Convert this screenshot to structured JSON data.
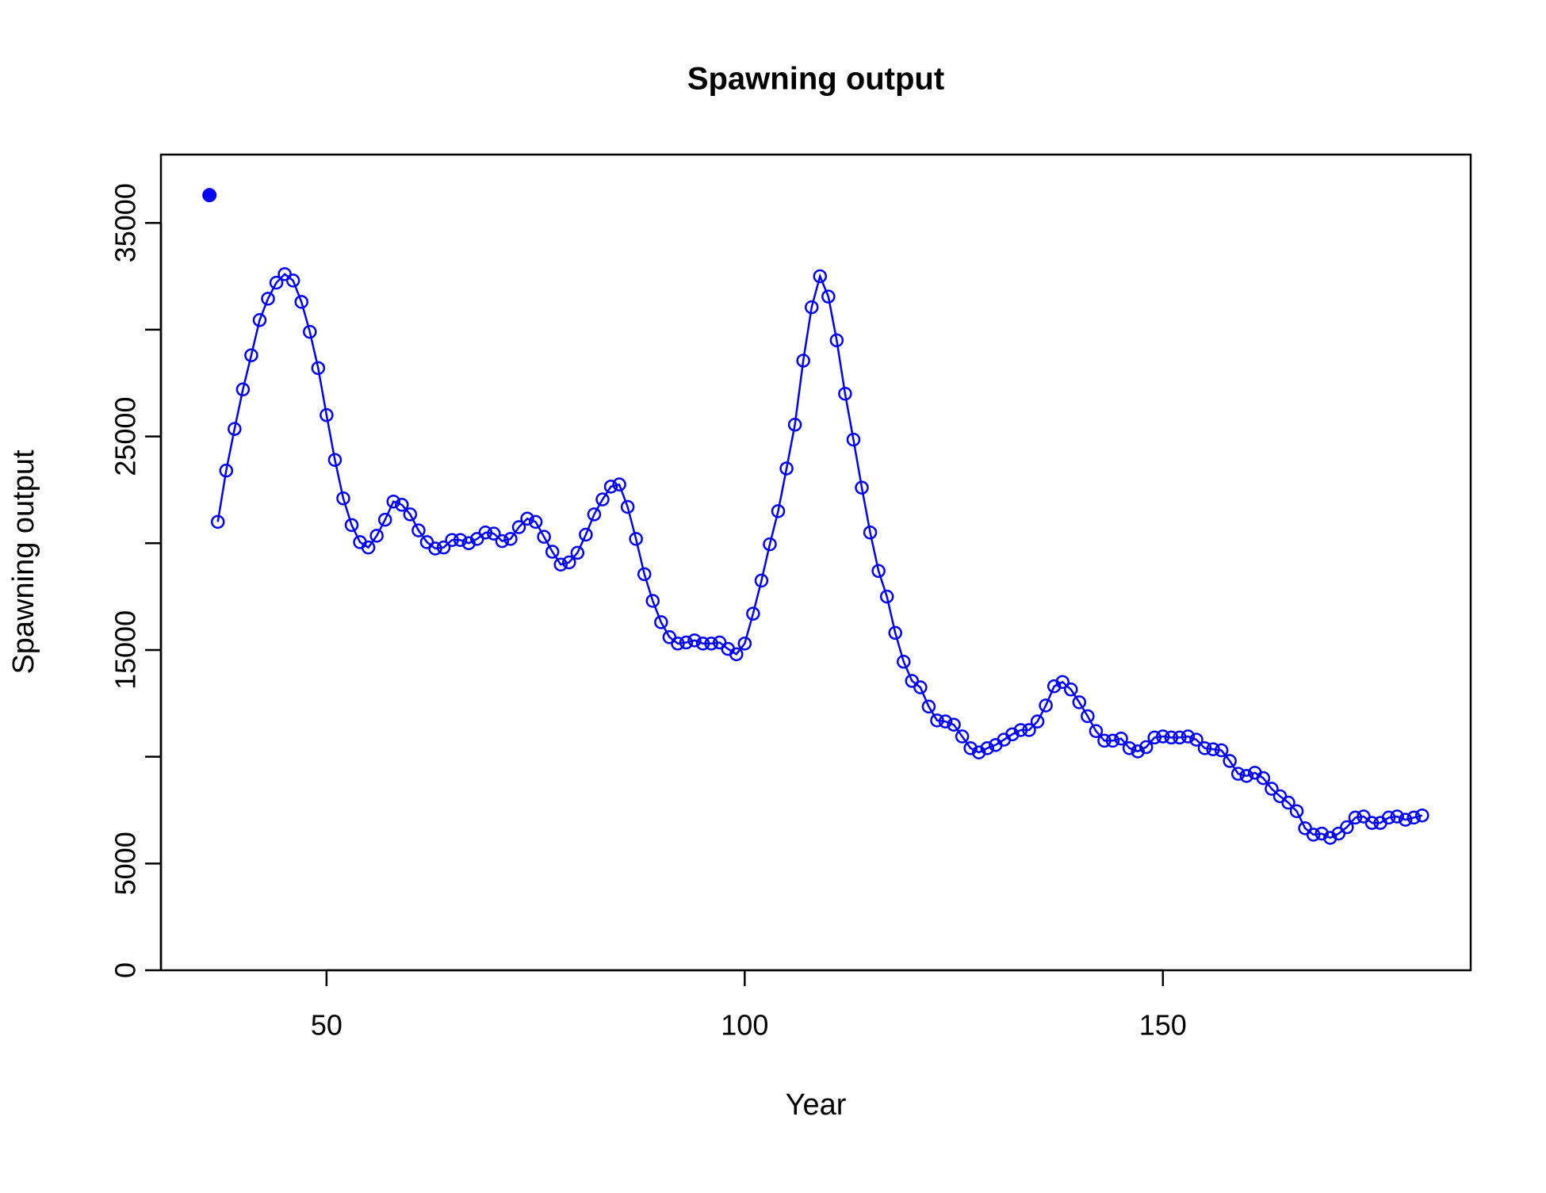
{
  "chart_data": {
    "type": "line",
    "title": "Spawning output",
    "x_label": "Year",
    "y_label": "Spawning output",
    "xlim": [
      30.2,
      186.8
    ],
    "ylim": [
      0,
      38200
    ],
    "xticks": [
      50,
      100,
      150
    ],
    "yticks": [
      0,
      5000,
      {
        "value": 10000,
        "label": null
      },
      15000,
      {
        "value": 20000,
        "label": null
      },
      25000,
      {
        "value": 30000,
        "label": null
      },
      35000
    ],
    "series": [
      {
        "color": "#0000ff",
        "style": "line-circles",
        "x": [
          37,
          38,
          39,
          40,
          41,
          42,
          43,
          44,
          45,
          46,
          47,
          48,
          49,
          50,
          51,
          52,
          53,
          54,
          55,
          56,
          57,
          58,
          59,
          60,
          61,
          62,
          63,
          64,
          65,
          66,
          67,
          68,
          69,
          70,
          71,
          72,
          73,
          74,
          75,
          76,
          77,
          78,
          79,
          80,
          81,
          82,
          83,
          84,
          85,
          86,
          87,
          88,
          89,
          90,
          91,
          92,
          93,
          94,
          95,
          96,
          97,
          98,
          99,
          100,
          101,
          102,
          103,
          104,
          105,
          106,
          107,
          108,
          109,
          110,
          111,
          112,
          113,
          114,
          115,
          116,
          117,
          118,
          119,
          120,
          121,
          122,
          123,
          124,
          125,
          126,
          127,
          128,
          129,
          130,
          131,
          132,
          133,
          134,
          135,
          136,
          137,
          138,
          139,
          140,
          141,
          142,
          143,
          144,
          145,
          146,
          147,
          148,
          149,
          150,
          151,
          152,
          153,
          154,
          155,
          156,
          157,
          158,
          159,
          160,
          161,
          162,
          163,
          164,
          165,
          166,
          167,
          168,
          169,
          170,
          171,
          172,
          173,
          174,
          175,
          176,
          177,
          178,
          179,
          180,
          181
        ],
        "values": [
          21000,
          23400,
          25350,
          27200,
          28800,
          30450,
          31450,
          32200,
          32600,
          32300,
          31300,
          29900,
          28200,
          26000,
          23900,
          22100,
          20850,
          20050,
          19800,
          20350,
          21100,
          21950,
          21800,
          21350,
          20600,
          20050,
          19750,
          19800,
          20150,
          20150,
          20000,
          20200,
          20500,
          20450,
          20100,
          20200,
          20750,
          21150,
          21000,
          20300,
          19600,
          19000,
          19100,
          19550,
          20400,
          21350,
          22050,
          22650,
          22750,
          21700,
          20200,
          18550,
          17300,
          16300,
          15600,
          15300,
          15350,
          15450,
          15300,
          15300,
          15350,
          15050,
          14800,
          15300,
          16700,
          18250,
          19950,
          21500,
          23500,
          25550,
          28550,
          31050,
          32500,
          31550,
          29500,
          27000,
          24850,
          22600,
          20500,
          18700,
          17500,
          15800,
          14450,
          13550,
          13250,
          12350,
          11700,
          11650,
          11500,
          10950,
          10400,
          10200,
          10400,
          10550,
          10800,
          11050,
          11250,
          11250,
          11650,
          12400,
          13300,
          13500,
          13150,
          12550,
          11900,
          11200,
          10750,
          10750,
          10850,
          10400,
          10250,
          10450,
          10900,
          10950,
          10900,
          10900,
          10950,
          10800,
          10400,
          10350,
          10300,
          9800,
          9200,
          9100,
          9250,
          9000,
          8500,
          8150,
          7850,
          7450,
          6650,
          6350,
          6400,
          6200,
          6400,
          6700,
          7150,
          7200,
          6900,
          6900,
          7150,
          7200,
          7050,
          7150,
          7250
        ]
      },
      {
        "color": "#0000ff",
        "style": "filled-point",
        "x": [
          36
        ],
        "values": [
          36300
        ]
      }
    ]
  }
}
